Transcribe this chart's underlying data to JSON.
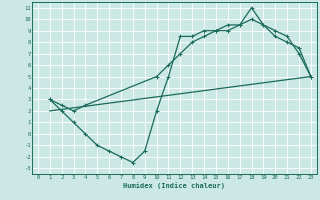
{
  "xlabel": "Humidex (Indice chaleur)",
  "bg_color": "#cce8e4",
  "grid_color": "#ffffff",
  "line_color": "#1a6b5a",
  "xlim": [
    -0.5,
    23.5
  ],
  "ylim": [
    -3.5,
    11.5
  ],
  "xticks": [
    0,
    1,
    2,
    3,
    4,
    5,
    6,
    7,
    8,
    9,
    10,
    11,
    12,
    13,
    14,
    15,
    16,
    17,
    18,
    19,
    20,
    21,
    22,
    23
  ],
  "yticks": [
    -3,
    -2,
    -1,
    0,
    1,
    2,
    3,
    4,
    5,
    6,
    7,
    8,
    9,
    10,
    11
  ],
  "line1_x": [
    1,
    2,
    3,
    4,
    5,
    6,
    7,
    8,
    9,
    10,
    11,
    12,
    13,
    14,
    15,
    16,
    17,
    18,
    19,
    20,
    21,
    22,
    23
  ],
  "line1_y": [
    3,
    2,
    1,
    0,
    -1,
    -1.5,
    -2,
    -2.5,
    -1.5,
    2,
    5,
    8.5,
    8.5,
    9,
    9,
    9.5,
    9.5,
    11,
    9.5,
    9,
    8.5,
    7,
    5
  ],
  "line2_x": [
    1,
    2,
    3,
    4,
    10,
    11,
    12,
    13,
    14,
    15,
    16,
    17,
    18,
    19,
    20,
    21,
    22,
    23
  ],
  "line2_y": [
    3,
    2.5,
    2,
    2.5,
    5,
    6,
    7,
    8,
    8.5,
    9,
    9,
    9.5,
    10,
    9.5,
    8.5,
    8,
    7.5,
    5
  ],
  "line3_x": [
    1,
    23
  ],
  "line3_y": [
    2,
    5
  ]
}
